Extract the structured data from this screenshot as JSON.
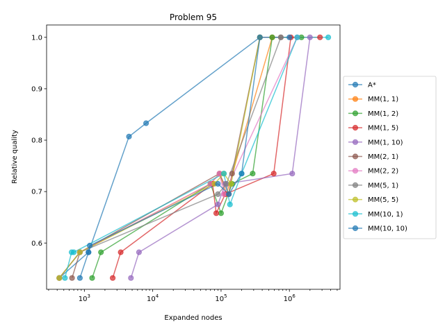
{
  "chart_data": {
    "type": "line",
    "title": "Problem 95",
    "xlabel": "Expanded nodes",
    "ylabel": "Relative quality",
    "xscale": "log",
    "xlim": [
      280,
      5500000
    ],
    "ylim": [
      0.51,
      1.024
    ],
    "x_ticks": [
      {
        "value": 1000,
        "base": "10",
        "exp": "3"
      },
      {
        "value": 10000,
        "base": "10",
        "exp": "4"
      },
      {
        "value": 100000,
        "base": "10",
        "exp": "5"
      },
      {
        "value": 1000000,
        "base": "10",
        "exp": "6"
      }
    ],
    "y_ticks": [
      {
        "value": 0.6,
        "label": "0.6"
      },
      {
        "value": 0.7,
        "label": "0.7"
      },
      {
        "value": 0.8,
        "label": "0.8"
      },
      {
        "value": 0.9,
        "label": "0.9"
      },
      {
        "value": 1.0,
        "label": "1.0"
      }
    ],
    "grid": false,
    "legend_position": "right",
    "series": [
      {
        "name": "A*",
        "color": "#1f77b4",
        "points": [
          [
            430,
            0.532
          ],
          [
            1150,
            0.582
          ],
          [
            4500,
            0.807
          ],
          [
            8000,
            0.833
          ],
          [
            370000,
            1.0
          ]
        ]
      },
      {
        "name": "MM(1, 1)",
        "color": "#ff7f0e",
        "points": [
          [
            430,
            0.532
          ],
          [
            860,
            0.582
          ],
          [
            70000,
            0.715
          ],
          [
            95000,
            0.735
          ],
          [
            120000,
            0.695
          ],
          [
            560000,
            1.0
          ]
        ]
      },
      {
        "name": "MM(1, 2)",
        "color": "#2ca02c",
        "points": [
          [
            1300,
            0.532
          ],
          [
            1750,
            0.582
          ],
          [
            70000,
            0.715
          ],
          [
            100000,
            0.658
          ],
          [
            145000,
            0.715
          ],
          [
            290000,
            0.735
          ],
          [
            560000,
            1.0
          ],
          [
            1500000,
            1.0
          ]
        ]
      },
      {
        "name": "MM(1, 5)",
        "color": "#d62728",
        "points": [
          [
            2600,
            0.532
          ],
          [
            3400,
            0.582
          ],
          [
            75000,
            0.715
          ],
          [
            85000,
            0.658
          ],
          [
            115000,
            0.695
          ],
          [
            590000,
            0.735
          ],
          [
            1050000,
            1.0
          ],
          [
            2800000,
            1.0
          ]
        ]
      },
      {
        "name": "MM(1, 10)",
        "color": "#9467bd",
        "points": [
          [
            4800,
            0.532
          ],
          [
            6300,
            0.582
          ],
          [
            90000,
            0.675
          ],
          [
            115000,
            0.715
          ],
          [
            1100000,
            0.735
          ],
          [
            2000000,
            1.0
          ]
        ]
      },
      {
        "name": "MM(2, 1)",
        "color": "#8c564b",
        "points": [
          [
            660,
            0.532
          ],
          [
            860,
            0.582
          ],
          [
            95000,
            0.735
          ],
          [
            130000,
            0.695
          ],
          [
            145000,
            0.735
          ],
          [
            370000,
            1.0
          ],
          [
            750000,
            1.0
          ]
        ]
      },
      {
        "name": "MM(2, 2)",
        "color": "#e377c2",
        "points": [
          [
            430,
            0.532
          ],
          [
            860,
            0.582
          ],
          [
            70000,
            0.715
          ],
          [
            95000,
            0.735
          ],
          [
            110000,
            0.695
          ],
          [
            1300000,
            1.0
          ]
        ]
      },
      {
        "name": "MM(5, 1)",
        "color": "#7f7f7f",
        "points": [
          [
            430,
            0.532
          ],
          [
            860,
            0.582
          ],
          [
            90000,
            0.695
          ],
          [
            120000,
            0.715
          ],
          [
            750000,
            1.0
          ]
        ]
      },
      {
        "name": "MM(5, 5)",
        "color": "#bcbd22",
        "points": [
          [
            430,
            0.532
          ],
          [
            860,
            0.582
          ],
          [
            80000,
            0.715
          ],
          [
            110000,
            0.735
          ],
          [
            140000,
            0.715
          ],
          [
            370000,
            1.0
          ]
        ]
      },
      {
        "name": "MM(10, 1)",
        "color": "#17becf",
        "points": [
          [
            520,
            0.532
          ],
          [
            650,
            0.582
          ],
          [
            700,
            0.582
          ],
          [
            110000,
            0.735
          ],
          [
            135000,
            0.675
          ],
          [
            200000,
            0.735
          ],
          [
            1300000,
            1.0
          ],
          [
            3700000,
            1.0
          ]
        ]
      },
      {
        "name": "MM(10, 10)",
        "color": "#1f77b4",
        "points": [
          [
            860,
            0.532
          ],
          [
            1150,
            0.582
          ],
          [
            1200,
            0.595
          ],
          [
            90000,
            0.715
          ],
          [
            130000,
            0.695
          ],
          [
            200000,
            0.735
          ],
          [
            370000,
            1.0
          ],
          [
            1000000,
            1.0
          ]
        ]
      }
    ]
  }
}
